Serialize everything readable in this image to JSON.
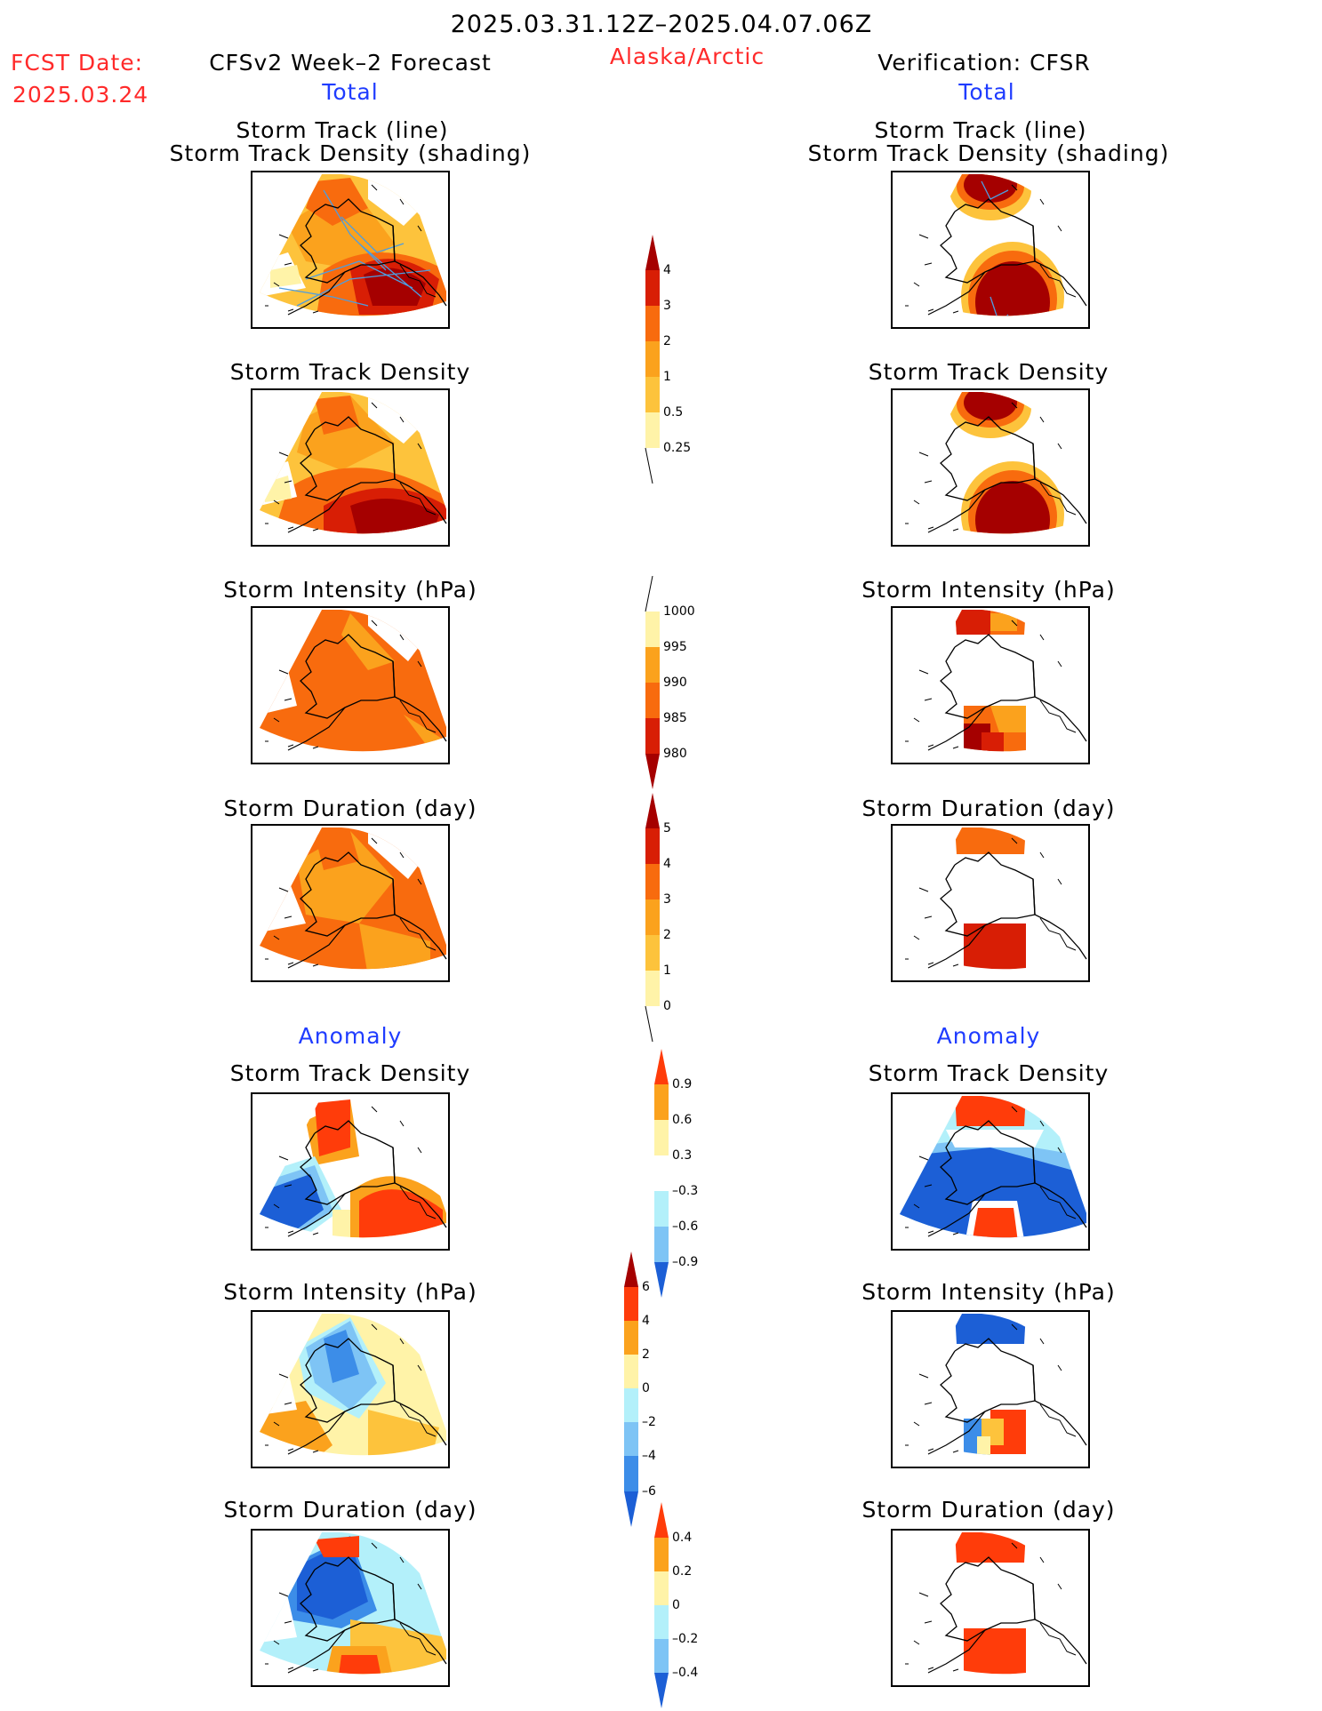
{
  "header": {
    "date_range": "2025.03.31.12Z–2025.04.07.06Z",
    "fcst_label": "FCST Date:",
    "fcst_date": "2025.03.24",
    "model_title": "CFSv2 Week–2 Forecast",
    "region": "Alaska/Arctic",
    "verification_title": "Verification: CFSR"
  },
  "sections": {
    "total_label": "Total",
    "anomaly_label": "Anomaly"
  },
  "panel_titles": {
    "track_line": "Storm Track (line)",
    "track_density_shading": "Storm Track Density (shading)",
    "track_density": "Storm Track Density",
    "intensity": "Storm Intensity (hPa)",
    "duration": "Storm Duration (day)"
  },
  "colorbars": {
    "track_density_total": [
      "4",
      "3",
      "2",
      "1",
      "0.5",
      "0.25"
    ],
    "intensity_total": [
      "1000",
      "995",
      "990",
      "985",
      "980"
    ],
    "duration_total": [
      "5",
      "4",
      "3",
      "2",
      "1",
      "0"
    ],
    "track_density_anom": [
      "0.9",
      "0.6",
      "0.3",
      "–0.3",
      "–0.6",
      "–0.9"
    ],
    "intensity_anom": [
      "6",
      "4",
      "2",
      "0",
      "–2",
      "–4",
      "–6"
    ],
    "duration_anom": [
      "0.4",
      "0.2",
      "0",
      "–0.2",
      "–0.4"
    ]
  },
  "colors": {
    "dark_red": "#a50000",
    "red": "#d81e05",
    "red_orange": "#ff3c0a",
    "orange": "#f86b0e",
    "light_orange": "#fba21d",
    "yellow_orange": "#fdc33c",
    "pale_yellow": "#fff3a8",
    "pale_cyan": "#b3f0fa",
    "light_blue": "#7ec4f5",
    "mid_blue": "#3c8de8",
    "deep_blue": "#1c5fd6"
  }
}
